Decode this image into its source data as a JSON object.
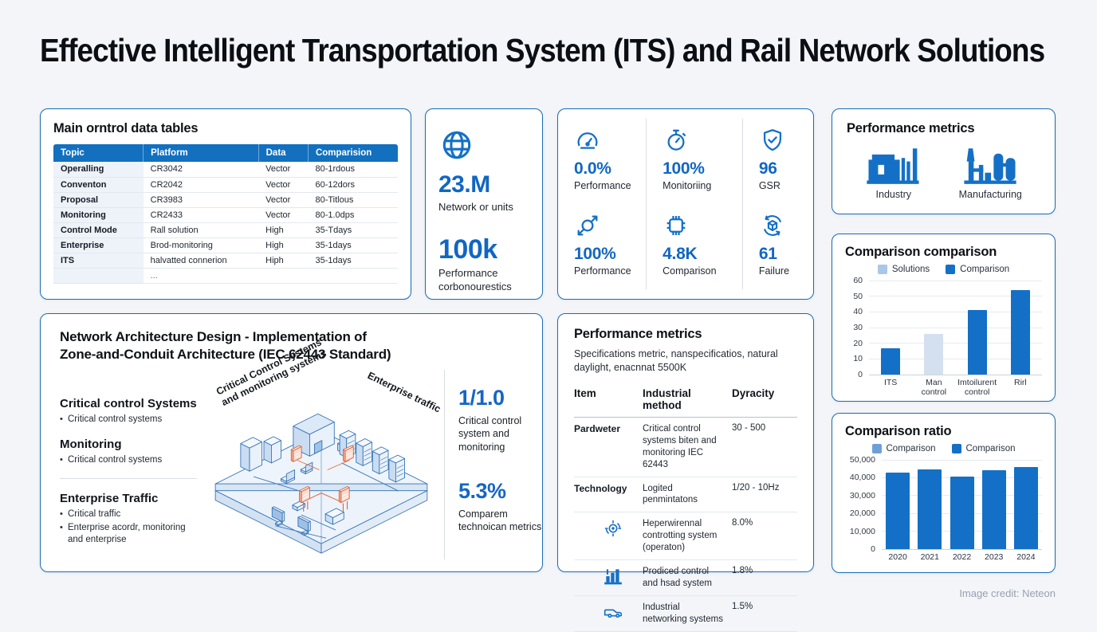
{
  "page": {
    "title": "Effective Intelligent Transportation System (ITS) and Rail Network Solutions",
    "credit": "Image credit: Neteon"
  },
  "colors": {
    "accent": "#1470c6",
    "bar_dark": "#1470c6",
    "bar_light": "#d4e0ef",
    "table_header": "#1270bf"
  },
  "data_table_panel": {
    "title": "Main orntrol data tables",
    "columns": [
      "Topic",
      "Platform",
      "Data",
      "Comparision"
    ],
    "rows": [
      [
        "Operalling",
        "CR3042",
        "Vector",
        "80-1rdous"
      ],
      [
        "Conventon",
        "CR2042",
        "Vector",
        "60-12dors"
      ],
      [
        "Proposal",
        "CR3983",
        "Vector",
        "80-Titlous"
      ],
      [
        "Monitoring",
        "CR2433",
        "Vector",
        "80-1.0dps"
      ],
      [
        "Control Mode",
        "Rall solution",
        "High",
        "35-Tdays"
      ],
      [
        "Enterprise",
        "Brod-monitoring",
        "High",
        "35-1days"
      ],
      [
        "ITS",
        "halvatted connerion",
        "Hiph",
        "35-1days"
      ],
      [
        "",
        "...",
        "",
        ""
      ]
    ]
  },
  "network_stats_panel": {
    "icon": "globe-icon",
    "stats": [
      {
        "value": "23.M",
        "label": "Network or units"
      },
      {
        "value": "100k",
        "label": "Performance corbonourestics"
      }
    ]
  },
  "kpi_panel": {
    "items": [
      {
        "icon": "gauge-icon",
        "value": "0.0%",
        "label": "Performance"
      },
      {
        "icon": "stopwatch-icon",
        "value": "100%",
        "label": "Monitoriing"
      },
      {
        "icon": "shield-check-icon",
        "value": "96",
        "label": "GSR"
      },
      {
        "icon": "expand-arrows-icon",
        "value": "100%",
        "label": "Performance"
      },
      {
        "icon": "chip-icon",
        "value": "4.8K",
        "label": "Comparison"
      },
      {
        "icon": "cube-sync-icon",
        "value": "61",
        "label": "Failure"
      }
    ]
  },
  "industry_panel": {
    "title": "Performance metrics",
    "items": [
      {
        "icon": "industry-icon",
        "label": "Industry"
      },
      {
        "icon": "manufacturing-icon",
        "label": "Manufacturing"
      }
    ]
  },
  "architecture_panel": {
    "title_line1": "Network Architecture Design - Implementation of",
    "title_line2": "Zone-and-Conduit Architecture (IEC 62443 Standard)",
    "sections": [
      {
        "heading": "Critical control Systems",
        "bullets": [
          "Critical control systems"
        ]
      },
      {
        "heading": "Monitoring",
        "bullets": [
          "Critical control systems"
        ]
      },
      {
        "heading": "Enterprise Traffic",
        "bullets": [
          "Critical traffic",
          "Enterprise acordr, monitoring and enterprise"
        ]
      }
    ],
    "diagram_labels": {
      "left": "Critical Control Systems and monitoring systems",
      "right": "Enterprise traffic"
    },
    "stats": [
      {
        "value": "1/1.0",
        "label": "Critical control system and monitoring"
      },
      {
        "value": "5.3%",
        "label": "Comparem technoican metrics"
      }
    ]
  },
  "metrics_panel": {
    "title": "Performance metrics",
    "subtitle": "Specifications metric, nanspecificatios, natural daylight, enacnnat 5500K",
    "columns": [
      "Item",
      "Industrial method",
      "Dyracity"
    ],
    "rows": [
      {
        "item": "Pardweter",
        "method": "Critical control systems biten and monitoring IEC 62443",
        "value": "30 - 500"
      },
      {
        "item": "Technology",
        "method": "Logited penmintatons",
        "value": "1/20 - 10Hz"
      }
    ],
    "sub_rows": [
      {
        "icon": "gear-target-icon",
        "method": "Heperwirennal controtting system (operaton)",
        "value": "8.0%"
      },
      {
        "icon": "factory-chart-icon",
        "method": "Prodiced control and hsad system",
        "value": "1.8%"
      },
      {
        "icon": "truck-icon",
        "method": "Industrial networking systems",
        "value": "1.5%"
      }
    ]
  },
  "chart_data": [
    {
      "type": "bar",
      "title": "Comparison comparison",
      "legend": [
        {
          "name": "Solutions",
          "color": "#a9c7e8"
        },
        {
          "name": "Comparison",
          "color": "#1470c6"
        }
      ],
      "legend_position": "top",
      "grid": true,
      "categories": [
        "ITS",
        "Man control",
        "Imtoilurent control",
        "Rirl"
      ],
      "values": [
        17,
        26,
        41,
        54
      ],
      "bar_colors": [
        "#1470c6",
        "#d4e0ef",
        "#1470c6",
        "#1470c6"
      ],
      "yticks": [
        "60",
        "50",
        "40",
        "30",
        "20",
        "10",
        "0"
      ],
      "ylim": [
        0,
        60
      ],
      "xlabel": "",
      "ylabel": ""
    },
    {
      "type": "bar",
      "title": "Comparison ratio",
      "legend": [
        {
          "name": "Comparison",
          "color": "#6f9fd8"
        },
        {
          "name": "Comparison",
          "color": "#1470c6"
        }
      ],
      "legend_position": "top",
      "grid": true,
      "categories": [
        "2020",
        "2021",
        "2022",
        "2023",
        "2024"
      ],
      "values": [
        43000,
        44800,
        40800,
        44000,
        45800
      ],
      "bar_colors": [
        "#1470c6",
        "#1470c6",
        "#1470c6",
        "#1470c6",
        "#1470c6"
      ],
      "yticks": [
        "50,000",
        "40,000",
        "30,000",
        "20,000",
        "10,000",
        "0"
      ],
      "ylim": [
        0,
        50000
      ],
      "xlabel": "",
      "ylabel": ""
    }
  ]
}
